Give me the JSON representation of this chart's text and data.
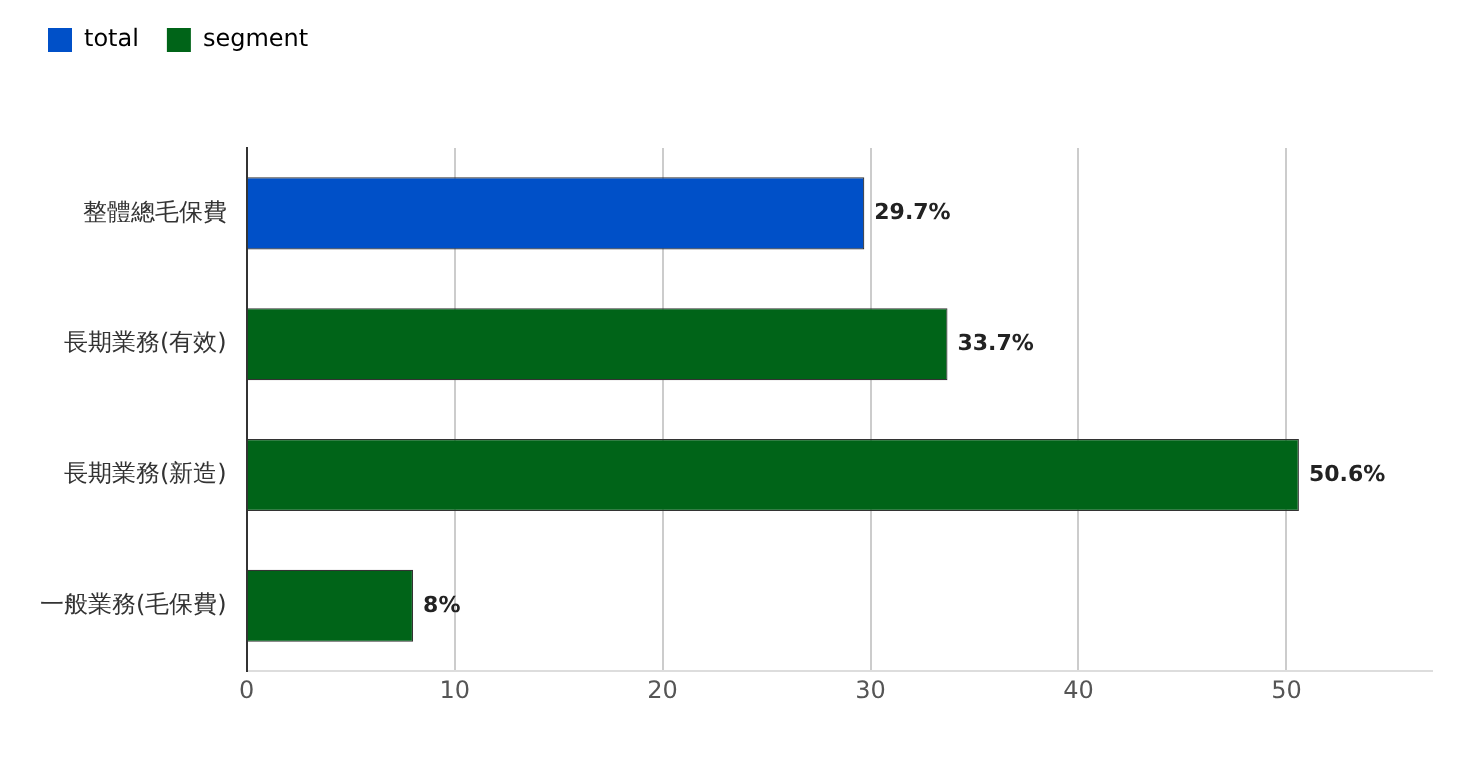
{
  "chart_data": {
    "type": "bar",
    "orientation": "horizontal",
    "categories": [
      "整體總毛保費",
      "長期業務(有效)",
      "長期業務(新造)",
      "一般業務(毛保費)"
    ],
    "series": [
      {
        "name": "total",
        "color": "#0050c8",
        "values": [
          29.7,
          null,
          null,
          null
        ],
        "value_labels": [
          "29.7%",
          null,
          null,
          null
        ]
      },
      {
        "name": "segment",
        "color": "#006418",
        "values": [
          null,
          33.7,
          50.6,
          8
        ],
        "value_labels": [
          null,
          "33.7%",
          "50.6%",
          "8%"
        ]
      }
    ],
    "xlim": [
      0,
      57
    ],
    "xticks": [
      0,
      10,
      20,
      30,
      40,
      50
    ],
    "grid": "x",
    "legend": "top left"
  }
}
